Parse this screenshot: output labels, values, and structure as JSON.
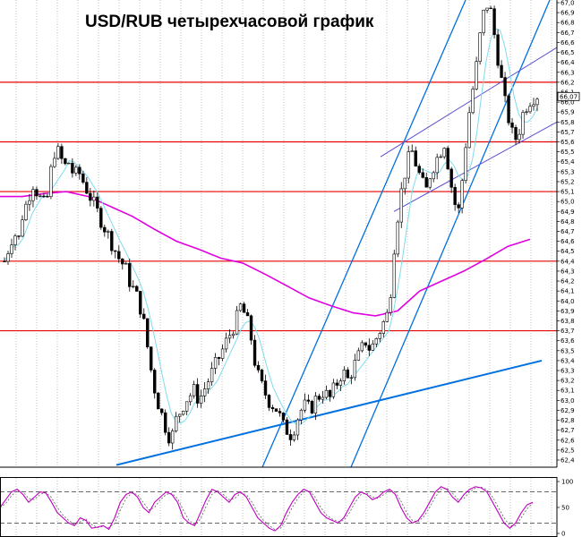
{
  "chart_data": {
    "type": "line",
    "subtype": "candlestick",
    "title": "USD/RUB четырехчасовой график",
    "y_axis": {
      "side": "right",
      "range": [
        62.35,
        67.0
      ],
      "ticks": [
        "67,0",
        "66,9",
        "66,8",
        "66,7",
        "66,6",
        "66,5",
        "66,4",
        "66,3",
        "66,2",
        "66,1",
        "66,0",
        "65,9",
        "65,8",
        "65,7",
        "65,6",
        "65,5",
        "65,4",
        "65,3",
        "65,2",
        "65,1",
        "65,0",
        "64,9",
        "64,8",
        "64,7",
        "64,6",
        "64,5",
        "64,4",
        "64,3",
        "64,2",
        "64,1",
        "64,0",
        "63,9",
        "63,8",
        "63,7",
        "63,6",
        "63,5",
        "63,4",
        "63,3",
        "63,2",
        "63,1",
        "63,0",
        "62,9",
        "62,8",
        "62,7",
        "62,6",
        "62,5",
        "62,4"
      ],
      "last_price": "66,07"
    },
    "grid": "vertical dotted",
    "price_series": [
      64.4,
      64.55,
      64.7,
      64.6,
      64.9,
      65.0,
      65.2,
      65.1,
      65.0,
      64.95,
      65.3,
      65.55,
      65.45,
      65.35,
      65.4,
      65.25,
      65.3,
      65.2,
      65.1,
      65.0,
      64.9,
      64.8,
      64.7,
      64.6,
      64.5,
      64.4,
      64.35,
      64.2,
      64.1,
      64.0,
      63.8,
      63.5,
      63.2,
      63.0,
      62.85,
      62.7,
      62.6,
      62.8,
      62.9,
      63.0,
      63.05,
      63.1,
      63.0,
      63.1,
      63.2,
      63.3,
      63.4,
      63.5,
      63.6,
      63.7,
      63.8,
      63.95,
      63.85,
      63.7,
      63.4,
      63.2,
      63.1,
      63.0,
      62.95,
      62.9,
      62.75,
      62.7,
      62.65,
      62.8,
      62.9,
      62.95,
      62.9,
      63.0,
      63.05,
      63.1,
      63.0,
      63.1,
      63.2,
      63.3,
      63.2,
      63.3,
      63.4,
      63.5,
      63.6,
      63.5,
      63.6,
      63.7,
      63.8,
      63.9,
      64.5,
      64.9,
      65.2,
      65.4,
      65.5,
      65.35,
      65.2,
      65.1,
      65.3,
      65.4,
      65.5,
      65.6,
      65.3,
      65.0,
      64.9,
      65.3,
      65.8,
      66.1,
      66.4,
      66.8,
      67.0,
      66.9,
      66.6,
      66.3,
      66.0,
      65.8,
      65.6,
      65.7,
      65.9,
      66.0,
      66.05,
      66.07
    ],
    "overlays": {
      "moving_averages": [
        {
          "color": "#7fdcec",
          "role": "fast MA"
        },
        {
          "color": "#e000e0",
          "role": "slow MA",
          "values": [
            65.05,
            65.05,
            65.08,
            65.1,
            65.05,
            64.95,
            64.85,
            64.72,
            64.6,
            64.52,
            64.43,
            64.38,
            64.27,
            64.15,
            64.03,
            63.95,
            63.88,
            63.85,
            63.9,
            64.1,
            64.2,
            64.3,
            64.42,
            64.55,
            64.62
          ]
        }
      ],
      "horizontal_levels": [
        66.2,
        65.6,
        65.1,
        64.4,
        63.7
      ],
      "level_color": "#e80000",
      "trend_color": "#0070e0",
      "channel_color": "#5a50d0"
    },
    "oscillator": {
      "ticks": [
        "100",
        "50",
        "0"
      ],
      "levels": [
        80,
        20
      ],
      "color": "#c000c0",
      "values": [
        50,
        65,
        80,
        85,
        75,
        60,
        70,
        80,
        78,
        60,
        40,
        30,
        20,
        15,
        30,
        25,
        10,
        12,
        15,
        8,
        30,
        60,
        75,
        80,
        70,
        50,
        40,
        60,
        70,
        80,
        75,
        60,
        30,
        20,
        15,
        40,
        65,
        85,
        80,
        70,
        60,
        75,
        80,
        70,
        50,
        30,
        20,
        10,
        5,
        15,
        40,
        60,
        75,
        85,
        80,
        60,
        40,
        30,
        25,
        20,
        30,
        50,
        70,
        80,
        75,
        65,
        70,
        80,
        85,
        75,
        50,
        30,
        20,
        25,
        40,
        60,
        80,
        90,
        85,
        70,
        60,
        75,
        85,
        90,
        88,
        80,
        60,
        40,
        20,
        10,
        20,
        40,
        55,
        60
      ]
    }
  }
}
